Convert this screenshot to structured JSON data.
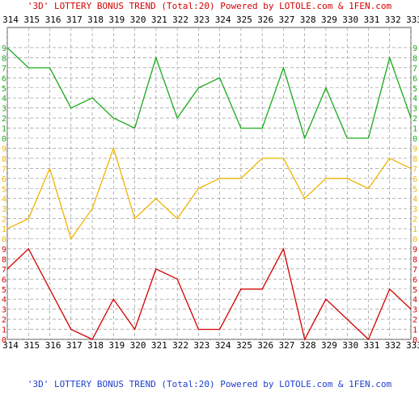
{
  "title_top": "'3D' LOTTERY BONUS TREND (Total:20)  Powered by LOTOLE.com & 1FEN.com",
  "title_bottom": "'3D' LOTTERY BONUS TREND (Total:20)  Powered by LOTOLE.com & 1FEN.com",
  "colors": {
    "green": "#1aaa1a",
    "yellow": "#f0b400",
    "red": "#d40000",
    "grid": "#888888",
    "axis_text": "#000000"
  },
  "chart_data": {
    "type": "line",
    "title": "'3D' LOTTERY BONUS TREND (Total:20)",
    "x": [
      "314",
      "315",
      "316",
      "317",
      "318",
      "319",
      "320",
      "321",
      "322",
      "323",
      "324",
      "325",
      "326",
      "327",
      "328",
      "329",
      "330",
      "331",
      "332",
      "333"
    ],
    "y_tick_labels": [
      "0",
      "1",
      "2",
      "3",
      "4",
      "5",
      "6",
      "7",
      "8",
      "9"
    ],
    "ylim": [
      0,
      9
    ],
    "grid": true,
    "series": [
      {
        "color": "green",
        "values": [
          9,
          7,
          7,
          3,
          4,
          2,
          1,
          8,
          2,
          5,
          6,
          1,
          1,
          7,
          0,
          5,
          0,
          0,
          8,
          2
        ]
      },
      {
        "color": "yellow",
        "values": [
          1,
          2,
          7,
          0,
          3,
          9,
          2,
          4,
          2,
          5,
          6,
          6,
          8,
          8,
          4,
          6,
          6,
          5,
          8,
          7
        ]
      },
      {
        "color": "red",
        "values": [
          7,
          9,
          5,
          1,
          0,
          4,
          1,
          7,
          6,
          1,
          1,
          5,
          5,
          9,
          0,
          4,
          2,
          0,
          5,
          3
        ]
      }
    ]
  }
}
